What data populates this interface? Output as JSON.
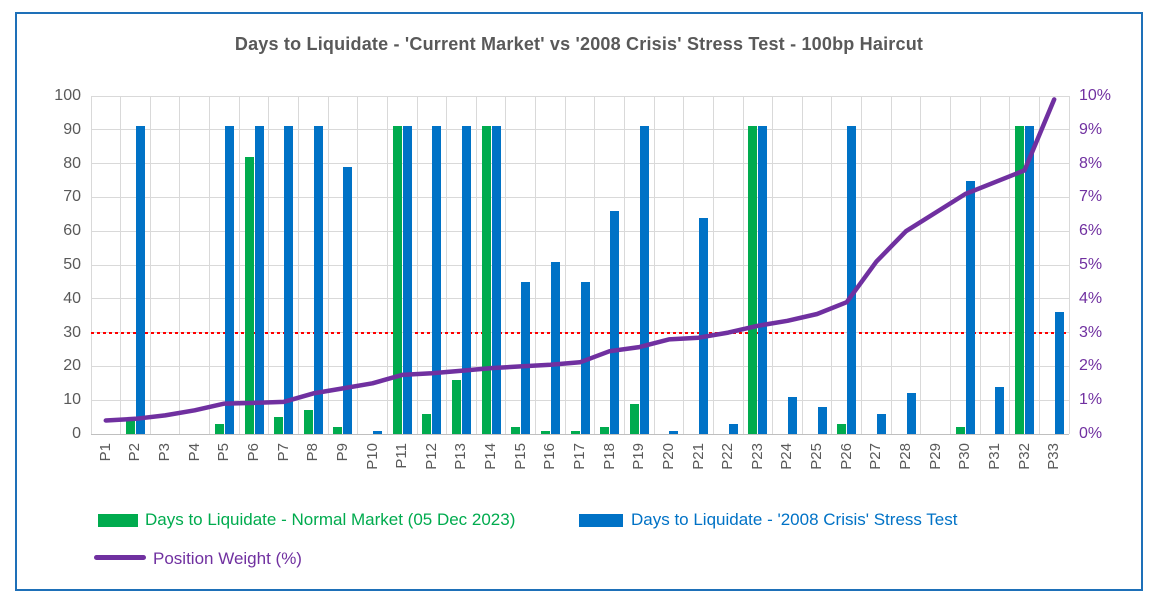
{
  "title": "Days to Liquidate - 'Current Market' vs '2008 Crisis' Stress Test - 100bp Haircut",
  "chart_data": {
    "type": "bar",
    "title": "Days to Liquidate - 'Current Market' vs '2008 Crisis' Stress Test - 100bp Haircut",
    "categories": [
      "P1",
      "P2",
      "P3",
      "P4",
      "P5",
      "P6",
      "P7",
      "P8",
      "P9",
      "P10",
      "P11",
      "P12",
      "P13",
      "P14",
      "P15",
      "P16",
      "P17",
      "P18",
      "P19",
      "P20",
      "P21",
      "P22",
      "P23",
      "P24",
      "P25",
      "P26",
      "P27",
      "P28",
      "P29",
      "P30",
      "P31",
      "P32",
      "P33"
    ],
    "series": [
      {
        "name": "Days to Liquidate - Normal Market (05 Dec 2023)",
        "type": "bar",
        "axis": "left",
        "color": "#00AB4E",
        "values": [
          0,
          4,
          0,
          0,
          3,
          82,
          5,
          7,
          2,
          0,
          91,
          6,
          16,
          91,
          2,
          1,
          1,
          2,
          9,
          0,
          0,
          0,
          91,
          0,
          0,
          3,
          0,
          0,
          0,
          2,
          0,
          91,
          0
        ]
      },
      {
        "name": "Days to Liquidate - '2008 Crisis' Stress Test",
        "type": "bar",
        "axis": "left",
        "color": "#0072C6",
        "values": [
          0,
          91,
          0,
          0,
          91,
          91,
          91,
          91,
          79,
          1,
          91,
          91,
          91,
          91,
          45,
          51,
          45,
          66,
          91,
          1,
          64,
          3,
          91,
          11,
          8,
          91,
          6,
          12,
          0,
          75,
          14,
          91,
          36
        ]
      },
      {
        "name": "Position Weight (%)",
        "type": "line",
        "axis": "right",
        "color": "#7030A0",
        "values": [
          0.4,
          0.45,
          0.55,
          0.7,
          0.9,
          0.92,
          0.95,
          1.2,
          1.35,
          1.5,
          1.75,
          1.8,
          1.87,
          1.95,
          2.0,
          2.05,
          2.12,
          2.45,
          2.57,
          2.8,
          2.85,
          3.0,
          3.2,
          3.35,
          3.55,
          3.9,
          5.1,
          6.0,
          6.55,
          7.1,
          7.45,
          7.8,
          9.9
        ]
      }
    ],
    "left_axis": {
      "min": 0,
      "max": 100,
      "step": 10,
      "ticks": [
        "0",
        "10",
        "20",
        "30",
        "40",
        "50",
        "60",
        "70",
        "80",
        "90",
        "100"
      ]
    },
    "right_axis": {
      "min": 0,
      "max": 10,
      "step": 1,
      "unit": "%",
      "ticks": [
        "0%",
        "1%",
        "2%",
        "3%",
        "4%",
        "5%",
        "6%",
        "7%",
        "8%",
        "9%",
        "10%"
      ]
    },
    "threshold_line": {
      "left_axis_value": 30,
      "right_axis_value": "3%",
      "color": "#FF0000",
      "style": "dotted"
    },
    "grid": "horizontal and vertical, light gray",
    "legend_position": "bottom"
  },
  "colors": {
    "normal_market_green": "#00AB4E",
    "stress_test_blue": "#0072C6",
    "position_weight_purple": "#7030A0",
    "threshold_red": "#FF0000",
    "grid_gray": "#D9D9D9",
    "text_gray": "#595959",
    "frame_border_blue": "#1E70B8"
  }
}
